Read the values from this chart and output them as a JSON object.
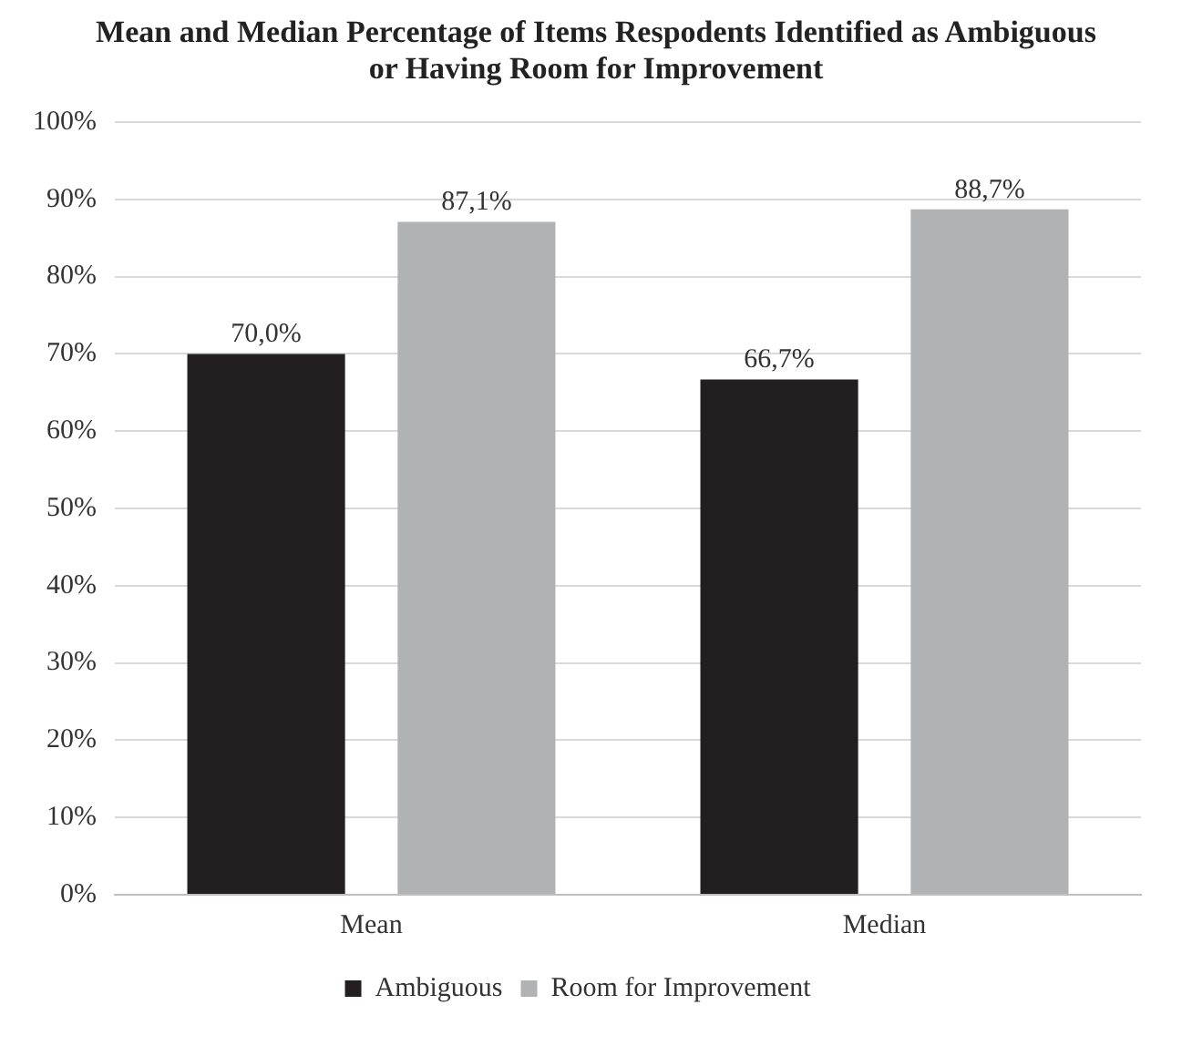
{
  "chart_data": {
    "type": "bar",
    "title": "Mean and Median Percentage of Items Respodents Identified  as Ambiguous or Having Room for Improvement",
    "categories": [
      "Mean",
      "Median"
    ],
    "series": [
      {
        "name": "Ambiguous",
        "color": "#231f20",
        "values": [
          70.0,
          66.7
        ],
        "value_labels": [
          "70,0%",
          "66,7%"
        ]
      },
      {
        "name": "Room for Improvement",
        "color": "#b1b2b4",
        "values": [
          87.1,
          88.7
        ],
        "value_labels": [
          "87,1%",
          "88,7%"
        ]
      }
    ],
    "ylim": [
      0,
      100
    ],
    "yticks": [
      {
        "value": 0,
        "label": "0%"
      },
      {
        "value": 10,
        "label": "10%"
      },
      {
        "value": 20,
        "label": "20%"
      },
      {
        "value": 30,
        "label": "30%"
      },
      {
        "value": 40,
        "label": "40%"
      },
      {
        "value": 50,
        "label": "50%"
      },
      {
        "value": 60,
        "label": "60%"
      },
      {
        "value": 70,
        "label": "70%"
      },
      {
        "value": 80,
        "label": "80%"
      },
      {
        "value": 90,
        "label": "90%"
      },
      {
        "value": 100,
        "label": "100%"
      }
    ],
    "grid": "y",
    "legend": "bottom"
  }
}
